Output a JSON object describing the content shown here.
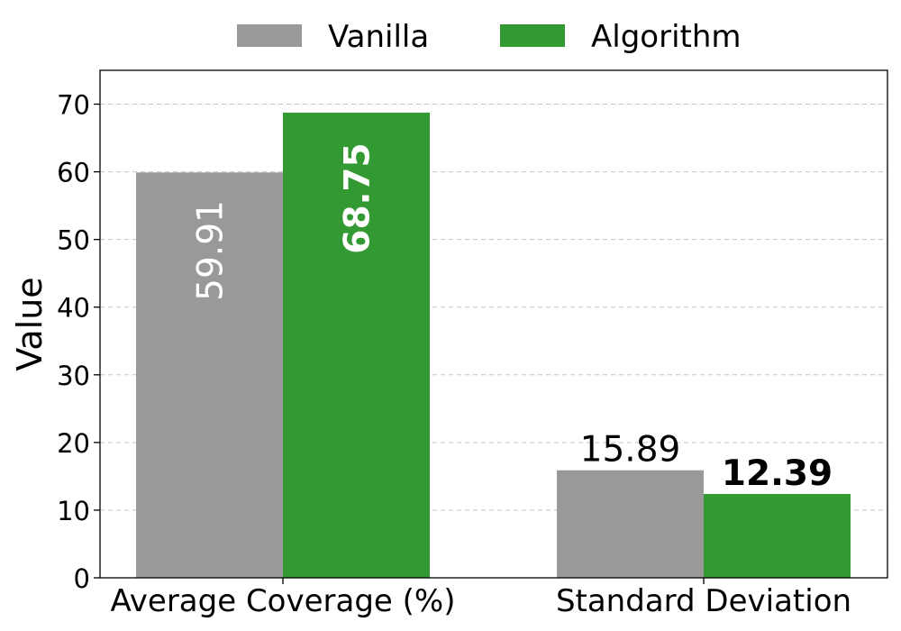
{
  "chart_data": {
    "type": "bar",
    "categories": [
      "Average Coverage (%)",
      "Standard Deviation"
    ],
    "series": [
      {
        "name": "Vanilla",
        "values": [
          59.91,
          15.89
        ],
        "color": "#999999"
      },
      {
        "name": "Algorithm",
        "values": [
          68.75,
          12.39
        ],
        "color": "#339933"
      }
    ],
    "data_labels": [
      [
        "59.91",
        "15.89"
      ],
      [
        "68.75",
        "12.39"
      ]
    ],
    "title": "",
    "xlabel": "",
    "ylabel": "Value",
    "ylim": [
      0,
      75
    ],
    "yticks": [
      "0",
      "10",
      "20",
      "30",
      "40",
      "50",
      "60",
      "70"
    ],
    "grid": "horizontal dashed",
    "legend_position": "top-center"
  }
}
